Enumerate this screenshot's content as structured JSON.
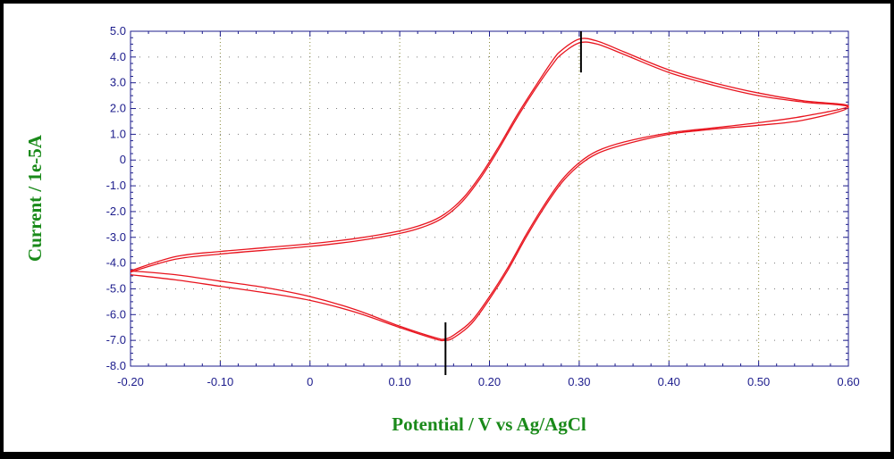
{
  "chart_data": {
    "type": "line",
    "xlabel": "Potential / V vs Ag/AgCl",
    "ylabel": "Current / 1e-5A",
    "xlim": [
      -0.2,
      0.6
    ],
    "ylim": [
      -8.0,
      5.0
    ],
    "x_ticks": [
      "-0.20",
      "-0.10",
      "0",
      "0.10",
      "0.20",
      "0.30",
      "0.40",
      "0.50",
      "0.60"
    ],
    "y_ticks": [
      "5.0",
      "4.0",
      "3.0",
      "2.0",
      "1.0",
      "0",
      "-1.0",
      "-2.0",
      "-3.0",
      "-4.0",
      "-5.0",
      "-6.0",
      "-7.0",
      "-8.0"
    ],
    "grid": true,
    "series": [
      {
        "color": "#e8141e",
        "x": [
          -0.2,
          -0.15,
          -0.1,
          -0.05,
          0.0,
          0.05,
          0.1,
          0.13,
          0.15,
          0.17,
          0.19,
          0.21,
          0.23,
          0.25,
          0.27,
          0.28,
          0.3,
          0.32,
          0.35,
          0.4,
          0.45,
          0.5,
          0.55,
          0.6,
          0.55,
          0.5,
          0.45,
          0.4,
          0.35,
          0.32,
          0.3,
          0.28,
          0.26,
          0.24,
          0.22,
          0.2,
          0.18,
          0.16,
          0.15,
          0.14,
          0.1,
          0.05,
          0.0,
          -0.05,
          -0.1,
          -0.15,
          -0.2
        ],
        "y": [
          -4.35,
          -3.85,
          -3.65,
          -3.5,
          -3.35,
          -3.15,
          -2.85,
          -2.55,
          -2.2,
          -1.6,
          -0.7,
          0.4,
          1.6,
          2.7,
          3.7,
          4.1,
          4.55,
          4.5,
          4.1,
          3.4,
          2.9,
          2.5,
          2.25,
          2.05,
          1.55,
          1.35,
          1.2,
          1.0,
          0.6,
          0.25,
          -0.2,
          -0.9,
          -1.9,
          -3.05,
          -4.3,
          -5.4,
          -6.35,
          -6.9,
          -7.0,
          -6.95,
          -6.5,
          -5.9,
          -5.45,
          -5.15,
          -4.9,
          -4.65,
          -4.45
        ]
      },
      {
        "color": "#e8141e",
        "x": [
          -0.2,
          -0.15,
          -0.1,
          -0.05,
          0.0,
          0.05,
          0.1,
          0.13,
          0.15,
          0.17,
          0.19,
          0.21,
          0.23,
          0.25,
          0.27,
          0.28,
          0.3,
          0.32,
          0.35,
          0.4,
          0.45,
          0.5,
          0.55,
          0.6,
          0.55,
          0.5,
          0.45,
          0.4,
          0.35,
          0.32,
          0.3,
          0.28,
          0.26,
          0.24,
          0.22,
          0.2,
          0.18,
          0.16,
          0.15,
          0.14,
          0.1,
          0.05,
          0.0,
          -0.05,
          -0.1,
          -0.15,
          -0.2
        ],
        "y": [
          -4.3,
          -3.75,
          -3.55,
          -3.4,
          -3.25,
          -3.05,
          -2.75,
          -2.45,
          -2.1,
          -1.5,
          -0.6,
          0.5,
          1.7,
          2.8,
          3.85,
          4.25,
          4.7,
          4.62,
          4.2,
          3.5,
          3.0,
          2.6,
          2.3,
          2.1,
          1.7,
          1.45,
          1.25,
          1.05,
          0.7,
          0.35,
          -0.1,
          -0.8,
          -1.8,
          -2.95,
          -4.2,
          -5.3,
          -6.25,
          -6.8,
          -6.95,
          -6.9,
          -6.45,
          -5.8,
          -5.3,
          -4.95,
          -4.7,
          -4.45,
          -4.3
        ]
      }
    ],
    "peak_markers": [
      {
        "x": 0.302,
        "y_from": 3.4,
        "y_to": 5.0
      },
      {
        "x": 0.151,
        "y_from": -8.0,
        "y_to": -6.3
      }
    ]
  }
}
